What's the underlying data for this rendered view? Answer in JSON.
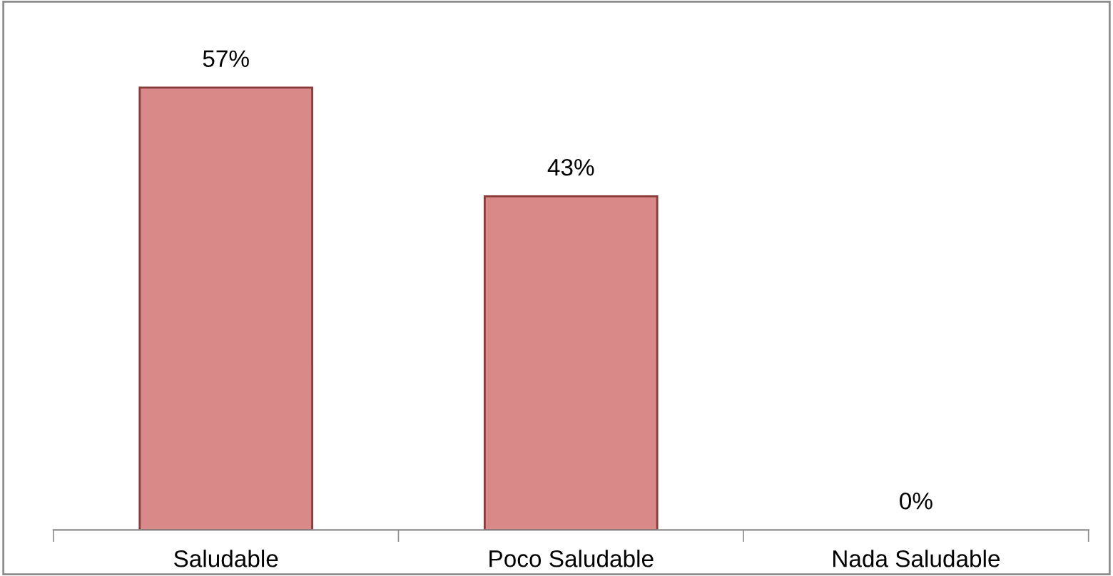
{
  "chart_data": {
    "type": "bar",
    "categories": [
      "Saludable",
      "Poco Saludable",
      "Nada Saludable"
    ],
    "values": [
      57,
      43,
      0
    ],
    "value_labels": [
      "57%",
      "43%",
      "0%"
    ],
    "color": "#d98a88",
    "grid": false,
    "legend": false
  }
}
